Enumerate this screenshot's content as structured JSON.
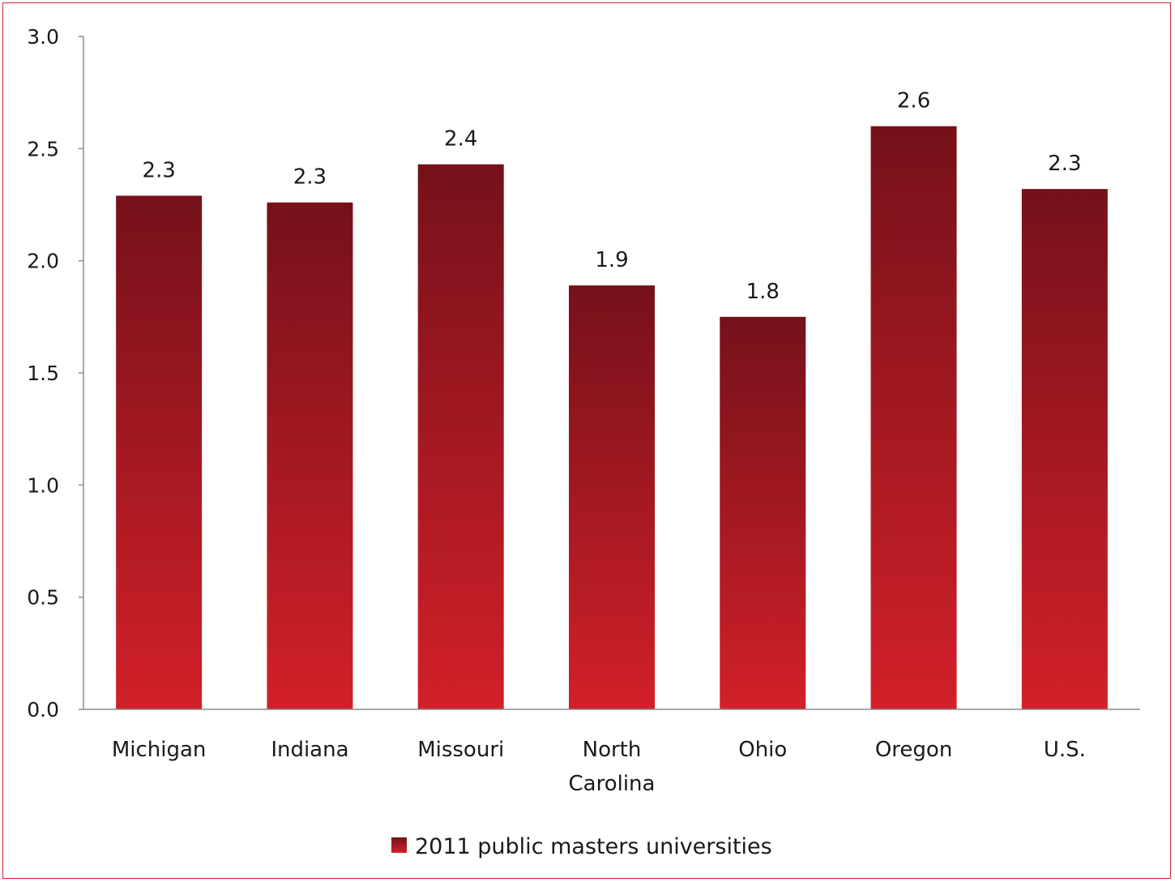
{
  "chart_data": {
    "type": "bar",
    "categories": [
      "Michigan",
      "Indiana",
      "Missouri",
      "North Carolina",
      "Ohio",
      "Oregon",
      "U.S."
    ],
    "category_label_lines": [
      [
        "Michigan"
      ],
      [
        "Indiana"
      ],
      [
        "Missouri"
      ],
      [
        "North",
        "Carolina"
      ],
      [
        "Ohio"
      ],
      [
        "Oregon"
      ],
      [
        "U.S."
      ]
    ],
    "series": [
      {
        "name": "2011 public masters universities",
        "values": [
          2.29,
          2.26,
          2.43,
          1.89,
          1.75,
          2.6,
          2.32
        ],
        "data_labels": [
          "2.3",
          "2.3",
          "2.4",
          "1.9",
          "1.8",
          "2.6",
          "2.3"
        ]
      }
    ],
    "ylim": [
      0,
      3.0
    ],
    "yticks": [
      "0.0",
      "0.5",
      "1.0",
      "1.5",
      "2.0",
      "2.5",
      "3.0"
    ],
    "title": "",
    "xlabel": "",
    "ylabel": "",
    "grid": false,
    "legend_position": "bottom",
    "colors": {
      "bar_top": "#75111a",
      "bar_bottom": "#d22029",
      "frame": "#c8262c",
      "axis": "#8c8c8c"
    }
  }
}
